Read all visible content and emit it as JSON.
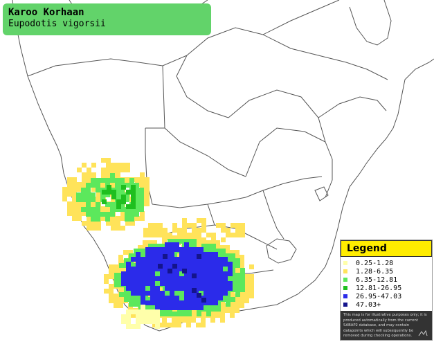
{
  "species": {
    "common_name": "Karoo Korhaan",
    "scientific_name": "Eupodotis vigorsii"
  },
  "legend": {
    "title": "Legend",
    "items": [
      {
        "label": "0.25-1.28",
        "color": "#ffffaa"
      },
      {
        "label": "1.28-6.35",
        "color": "#ffe35a"
      },
      {
        "label": "6.35-12.81",
        "color": "#5ce85c"
      },
      {
        "label": "12.81-26.95",
        "color": "#1fbf1f"
      },
      {
        "label": "26.95-47.03",
        "color": "#2b2bea"
      },
      {
        "label": "47.03+",
        "color": "#14148c"
      }
    ],
    "disclaimer": "This map is for illustrative purposes only; it is produced automatically from the current SABAP2 database, and may contain datapoints which will subsequently be removed during checking operations."
  },
  "colors": {
    "title_bg": "#62d36a",
    "legend_header_bg": "#ffec00",
    "border_line": "#444444"
  }
}
